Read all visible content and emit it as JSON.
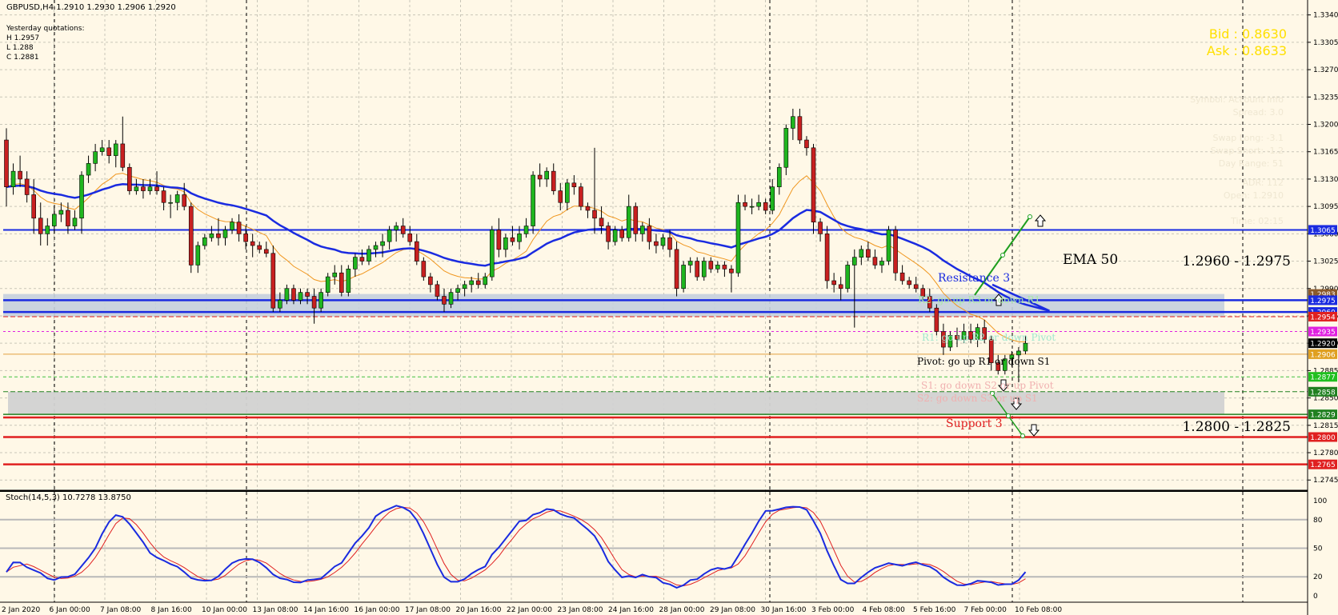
{
  "window": {
    "title": "GBPUSD,H4  1.2910 1.2930 1.2906 1.2920",
    "yesterday_title": "Yesterday quotations:",
    "yesterday_lines": [
      "H 1.2957",
      "L 1.288",
      "C 1.2881"
    ],
    "bid": "Bid : 0.8630",
    "ask": "Ask : 0.8633"
  },
  "colors": {
    "background": "#FFF8E7",
    "grid": "#C9C6B8",
    "bull": "#1FB51F",
    "bear": "#C82020",
    "ema": "#1A2BE0",
    "fast_ma": "#F0961E",
    "resistance_zone": "#C5CFDD",
    "support_zone": "#D2D2D2",
    "stoch_main": "#1A2BE0",
    "stoch_signal": "#E02020"
  },
  "chart_data": {
    "type": "candlestick",
    "symbol": "GBPUSD",
    "timeframe": "H4",
    "ylim": [
      1.2735,
      1.3355
    ],
    "y_ticks": [
      "1.3340",
      "1.3305",
      "1.3270",
      "1.3235",
      "1.3200",
      "1.3165",
      "1.3130",
      "1.3095",
      "1.3060",
      "1.3025",
      "1.2990",
      "1.2955",
      "1.2920",
      "1.2885",
      "1.2850",
      "1.2815",
      "1.2780",
      "1.2745"
    ],
    "x_labels": [
      "2 Jan 2020",
      "6 Jan 00:00",
      "7 Jan 08:00",
      "8 Jan 16:00",
      "10 Jan 00:00",
      "13 Jan 08:00",
      "14 Jan 16:00",
      "16 Jan 00:00",
      "17 Jan 08:00",
      "20 Jan 16:00",
      "22 Jan 00:00",
      "23 Jan 08:00",
      "24 Jan 16:00",
      "28 Jan 00:00",
      "29 Jan 08:00",
      "30 Jan 16:00",
      "3 Feb 00:00",
      "4 Feb 08:00",
      "5 Feb 16:00",
      "7 Feb 00:00",
      "10 Feb 08:00"
    ],
    "candles": [
      [
        1.318,
        1.3195,
        1.3095,
        1.312
      ],
      [
        1.312,
        1.315,
        1.311,
        1.314
      ],
      [
        1.314,
        1.316,
        1.312,
        1.313
      ],
      [
        1.313,
        1.314,
        1.31,
        1.311
      ],
      [
        1.311,
        1.313,
        1.306,
        1.308
      ],
      [
        1.308,
        1.31,
        1.3045,
        1.306
      ],
      [
        1.306,
        1.308,
        1.3045,
        1.307
      ],
      [
        1.307,
        1.3095,
        1.306,
        1.3085
      ],
      [
        1.3085,
        1.31,
        1.3075,
        1.309
      ],
      [
        1.309,
        1.31,
        1.306,
        1.307
      ],
      [
        1.307,
        1.309,
        1.3065,
        1.308
      ],
      [
        1.308,
        1.314,
        1.306,
        1.3135
      ],
      [
        1.3135,
        1.316,
        1.3125,
        1.315
      ],
      [
        1.315,
        1.3175,
        1.314,
        1.3165
      ],
      [
        1.3165,
        1.318,
        1.316,
        1.317
      ],
      [
        1.317,
        1.318,
        1.315,
        1.316
      ],
      [
        1.316,
        1.318,
        1.3145,
        1.3175
      ],
      [
        1.3175,
        1.321,
        1.314,
        1.3145
      ],
      [
        1.3145,
        1.315,
        1.311,
        1.3115
      ],
      [
        1.3115,
        1.313,
        1.311,
        1.312
      ],
      [
        1.312,
        1.313,
        1.3105,
        1.3115
      ],
      [
        1.3115,
        1.313,
        1.311,
        1.312
      ],
      [
        1.312,
        1.314,
        1.311,
        1.3115
      ],
      [
        1.3115,
        1.312,
        1.309,
        1.31
      ],
      [
        1.31,
        1.311,
        1.308,
        1.31
      ],
      [
        1.31,
        1.3115,
        1.309,
        1.311
      ],
      [
        1.311,
        1.3125,
        1.309,
        1.3095
      ],
      [
        1.3095,
        1.31,
        1.301,
        1.302
      ],
      [
        1.302,
        1.305,
        1.301,
        1.3045
      ],
      [
        1.3045,
        1.306,
        1.304,
        1.3055
      ],
      [
        1.3055,
        1.307,
        1.305,
        1.306
      ],
      [
        1.306,
        1.308,
        1.3045,
        1.3055
      ],
      [
        1.3055,
        1.307,
        1.3045,
        1.3065
      ],
      [
        1.3065,
        1.308,
        1.306,
        1.3075
      ],
      [
        1.3075,
        1.3085,
        1.305,
        1.306
      ],
      [
        1.306,
        1.307,
        1.304,
        1.305
      ],
      [
        1.305,
        1.306,
        1.303,
        1.3045
      ],
      [
        1.3045,
        1.305,
        1.3035,
        1.304
      ],
      [
        1.304,
        1.305,
        1.303,
        1.3035
      ],
      [
        1.3035,
        1.3045,
        1.296,
        1.2965
      ],
      [
        1.2965,
        1.2985,
        1.296,
        1.2975
      ],
      [
        1.2975,
        1.2995,
        1.297,
        1.299
      ],
      [
        1.299,
        1.2995,
        1.297,
        1.2975
      ],
      [
        1.2975,
        1.299,
        1.297,
        1.2985
      ],
      [
        1.2985,
        1.299,
        1.297,
        1.298
      ],
      [
        1.298,
        1.299,
        1.2945,
        1.2965
      ],
      [
        1.2965,
        1.299,
        1.296,
        1.2985
      ],
      [
        1.2985,
        1.301,
        1.298,
        1.3005
      ],
      [
        1.3005,
        1.302,
        1.2995,
        1.301
      ],
      [
        1.301,
        1.302,
        1.298,
        1.2985
      ],
      [
        1.2985,
        1.302,
        1.298,
        1.3015
      ],
      [
        1.3015,
        1.3035,
        1.3005,
        1.303
      ],
      [
        1.303,
        1.304,
        1.302,
        1.3025
      ],
      [
        1.3025,
        1.3045,
        1.302,
        1.304
      ],
      [
        1.304,
        1.305,
        1.303,
        1.3045
      ],
      [
        1.3045,
        1.306,
        1.303,
        1.305
      ],
      [
        1.305,
        1.307,
        1.304,
        1.3065
      ],
      [
        1.3065,
        1.3075,
        1.305,
        1.307
      ],
      [
        1.307,
        1.308,
        1.3055,
        1.306
      ],
      [
        1.306,
        1.307,
        1.3045,
        1.305
      ],
      [
        1.305,
        1.306,
        1.302,
        1.3025
      ],
      [
        1.3025,
        1.303,
        1.3,
        1.3005
      ],
      [
        1.3005,
        1.301,
        1.2985,
        1.2995
      ],
      [
        1.2995,
        1.3,
        1.2975,
        1.298
      ],
      [
        1.298,
        1.299,
        1.296,
        1.297
      ],
      [
        1.297,
        1.299,
        1.2965,
        1.2985
      ],
      [
        1.2985,
        1.2995,
        1.2975,
        1.299
      ],
      [
        1.299,
        1.3,
        1.298,
        1.2995
      ],
      [
        1.2995,
        1.3005,
        1.2985,
        1.3
      ],
      [
        1.3,
        1.301,
        1.299,
        1.2995
      ],
      [
        1.2995,
        1.301,
        1.299,
        1.3005
      ],
      [
        1.3005,
        1.307,
        1.3,
        1.3065
      ],
      [
        1.3065,
        1.308,
        1.303,
        1.304
      ],
      [
        1.304,
        1.306,
        1.303,
        1.3055
      ],
      [
        1.3055,
        1.307,
        1.3045,
        1.305
      ],
      [
        1.305,
        1.307,
        1.304,
        1.306
      ],
      [
        1.306,
        1.308,
        1.3055,
        1.307
      ],
      [
        1.307,
        1.314,
        1.306,
        1.3135
      ],
      [
        1.3135,
        1.315,
        1.312,
        1.313
      ],
      [
        1.313,
        1.3145,
        1.312,
        1.314
      ],
      [
        1.314,
        1.315,
        1.311,
        1.3115
      ],
      [
        1.3115,
        1.3125,
        1.309,
        1.31
      ],
      [
        1.31,
        1.313,
        1.309,
        1.3125
      ],
      [
        1.3125,
        1.3135,
        1.311,
        1.312
      ],
      [
        1.312,
        1.3125,
        1.309,
        1.3095
      ],
      [
        1.3095,
        1.31,
        1.308,
        1.309
      ],
      [
        1.309,
        1.317,
        1.306,
        1.308
      ],
      [
        1.308,
        1.3095,
        1.306,
        1.307
      ],
      [
        1.307,
        1.3075,
        1.304,
        1.305
      ],
      [
        1.305,
        1.307,
        1.3045,
        1.3065
      ],
      [
        1.3065,
        1.307,
        1.305,
        1.3055
      ],
      [
        1.3055,
        1.311,
        1.305,
        1.3095
      ],
      [
        1.3095,
        1.31,
        1.305,
        1.306
      ],
      [
        1.306,
        1.3075,
        1.305,
        1.307
      ],
      [
        1.307,
        1.308,
        1.304,
        1.305
      ],
      [
        1.305,
        1.306,
        1.3035,
        1.3045
      ],
      [
        1.3045,
        1.306,
        1.304,
        1.3055
      ],
      [
        1.3055,
        1.3065,
        1.303,
        1.304
      ],
      [
        1.304,
        1.305,
        1.298,
        1.299
      ],
      [
        1.299,
        1.3025,
        1.2985,
        1.302
      ],
      [
        1.302,
        1.303,
        1.301,
        1.3025
      ],
      [
        1.3025,
        1.303,
        1.3,
        1.3005
      ],
      [
        1.3005,
        1.303,
        1.3,
        1.3025
      ],
      [
        1.3025,
        1.303,
        1.301,
        1.3015
      ],
      [
        1.3015,
        1.3025,
        1.301,
        1.302
      ],
      [
        1.302,
        1.3025,
        1.3005,
        1.3015
      ],
      [
        1.3015,
        1.302,
        1.2985,
        1.301
      ],
      [
        1.301,
        1.311,
        1.3005,
        1.31
      ],
      [
        1.31,
        1.311,
        1.309,
        1.3095
      ],
      [
        1.3095,
        1.3105,
        1.3085,
        1.3095
      ],
      [
        1.3095,
        1.311,
        1.309,
        1.31
      ],
      [
        1.31,
        1.3105,
        1.3085,
        1.309
      ],
      [
        1.309,
        1.313,
        1.3085,
        1.312
      ],
      [
        1.312,
        1.315,
        1.311,
        1.3145
      ],
      [
        1.3145,
        1.32,
        1.3135,
        1.3195
      ],
      [
        1.3195,
        1.322,
        1.318,
        1.321
      ],
      [
        1.321,
        1.322,
        1.3175,
        1.318
      ],
      [
        1.318,
        1.3185,
        1.316,
        1.317
      ],
      [
        1.317,
        1.3175,
        1.306,
        1.3075
      ],
      [
        1.3075,
        1.308,
        1.305,
        1.306
      ],
      [
        1.306,
        1.307,
        1.299,
        1.3
      ],
      [
        1.3,
        1.301,
        1.2985,
        1.2995
      ],
      [
        1.2995,
        1.3005,
        1.2975,
        1.299
      ],
      [
        1.299,
        1.3025,
        1.2985,
        1.302
      ],
      [
        1.302,
        1.304,
        1.294,
        1.303
      ],
      [
        1.303,
        1.3045,
        1.302,
        1.304
      ],
      [
        1.304,
        1.305,
        1.3025,
        1.303
      ],
      [
        1.303,
        1.304,
        1.3015,
        1.302
      ],
      [
        1.302,
        1.303,
        1.301,
        1.3025
      ],
      [
        1.3025,
        1.307,
        1.302,
        1.3065
      ],
      [
        1.3065,
        1.307,
        1.3,
        1.301
      ],
      [
        1.301,
        1.302,
        1.2995,
        1.3
      ],
      [
        1.3,
        1.3005,
        1.299,
        1.2995
      ],
      [
        1.2995,
        1.3005,
        1.2985,
        1.299
      ],
      [
        1.299,
        1.2995,
        1.2975,
        1.298
      ],
      [
        1.298,
        1.299,
        1.296,
        1.2965
      ],
      [
        1.2965,
        1.297,
        1.293,
        1.2935
      ],
      [
        1.2935,
        1.2945,
        1.2905,
        1.2915
      ],
      [
        1.2915,
        1.2935,
        1.291,
        1.293
      ],
      [
        1.293,
        1.294,
        1.2915,
        1.2925
      ],
      [
        1.2925,
        1.2945,
        1.292,
        1.2935
      ],
      [
        1.2935,
        1.2945,
        1.292,
        1.2925
      ],
      [
        1.2925,
        1.2945,
        1.2915,
        1.294
      ],
      [
        1.294,
        1.295,
        1.292,
        1.2925
      ],
      [
        1.2925,
        1.293,
        1.2885,
        1.2895
      ],
      [
        1.2895,
        1.2905,
        1.288,
        1.2885
      ],
      [
        1.2885,
        1.2905,
        1.288,
        1.29
      ],
      [
        1.29,
        1.291,
        1.289,
        1.2905
      ],
      [
        1.2905,
        1.2915,
        1.287,
        1.291
      ],
      [
        1.291,
        1.293,
        1.2906,
        1.292
      ]
    ],
    "horizontal_levels": [
      {
        "name": "resistance-zone-top",
        "value": 1.2983,
        "tag": "1.2983",
        "tag_color": "#8B5A2B",
        "style": "zone"
      },
      {
        "name": "resistance-3",
        "value": 1.2975,
        "tag": "1.2975",
        "tag_color": "#1A2BE0",
        "style": "solid-blue"
      },
      {
        "name": "resistance-zone-bottom",
        "value": 1.296,
        "tag": "1.2960",
        "tag_color": "#1A2BE0",
        "style": "solid-blue"
      },
      {
        "name": "r2",
        "value": 1.2954,
        "tag": "1.2954",
        "tag_color": "#E02020",
        "style": "dash-red"
      },
      {
        "name": "r1",
        "value": 1.2935,
        "tag": "1.2935",
        "tag_color": "#E020E0",
        "style": "dash-magenta"
      },
      {
        "name": "current-price",
        "value": 1.292,
        "tag": "1.2920",
        "tag_color": "#000000",
        "style": "none"
      },
      {
        "name": "pivot",
        "value": 1.2906,
        "tag": "1.2906",
        "tag_color": "#E0A020",
        "style": "solid-orange"
      },
      {
        "name": "s1",
        "value": 1.2877,
        "tag": "1.2877",
        "tag_color": "#20C020",
        "style": "dash-green"
      },
      {
        "name": "s2",
        "value": 1.2858,
        "tag": "1.2858",
        "tag_color": "#208020",
        "style": "dash-darkgreen"
      },
      {
        "name": "support-zone-top",
        "value": 1.2829,
        "tag": "1.2829",
        "tag_color": "#208020",
        "style": "solid-green"
      },
      {
        "name": "support-3",
        "value": 1.2825,
        "tag": "",
        "tag_color": "#E02020",
        "style": "solid-red"
      },
      {
        "name": "support-zone-bottom",
        "value": 1.28,
        "tag": "1.2800",
        "tag_color": "#E02020",
        "style": "solid-red"
      },
      {
        "name": "support-lower",
        "value": 1.2765,
        "tag": "1.2765",
        "tag_color": "#E02020",
        "style": "solid-red"
      }
    ],
    "blue_level": {
      "value": 1.3065,
      "tag": "1.3065"
    },
    "annotations": {
      "ema_label": "EMA 50",
      "resistance_range": "1.2960 - 1.2975",
      "support_range": "1.2800 - 1.2825",
      "resistance_label": "Resistance 3",
      "support_label": "Support 3",
      "r2_label": "R2: go up R3 or down R1",
      "r1_label": "R1: go up R2 or down Pivot",
      "pivot_label": "Pivot: go up R1 or down S1",
      "s1_label": "S1: go down S2 or up Pivot",
      "s2_label": "S2: go down S3 or up S1"
    },
    "hidden_panel_lines": [
      "Symbol: Account Info",
      "Spread: 3.0",
      "Swap Long: -3.1",
      "Swap Short: -1.2",
      "Day Range: 51",
      "ADR: 112",
      "Open: 1.2910",
      "Time: 02:15"
    ],
    "stochastic": {
      "title": "Stoch(14,5,3) 10.7278 13.8750",
      "levels": [
        80,
        50,
        20
      ],
      "ylim": [
        0,
        100
      ],
      "ticks": [
        "100",
        "80",
        "50",
        "20",
        "0"
      ]
    }
  }
}
